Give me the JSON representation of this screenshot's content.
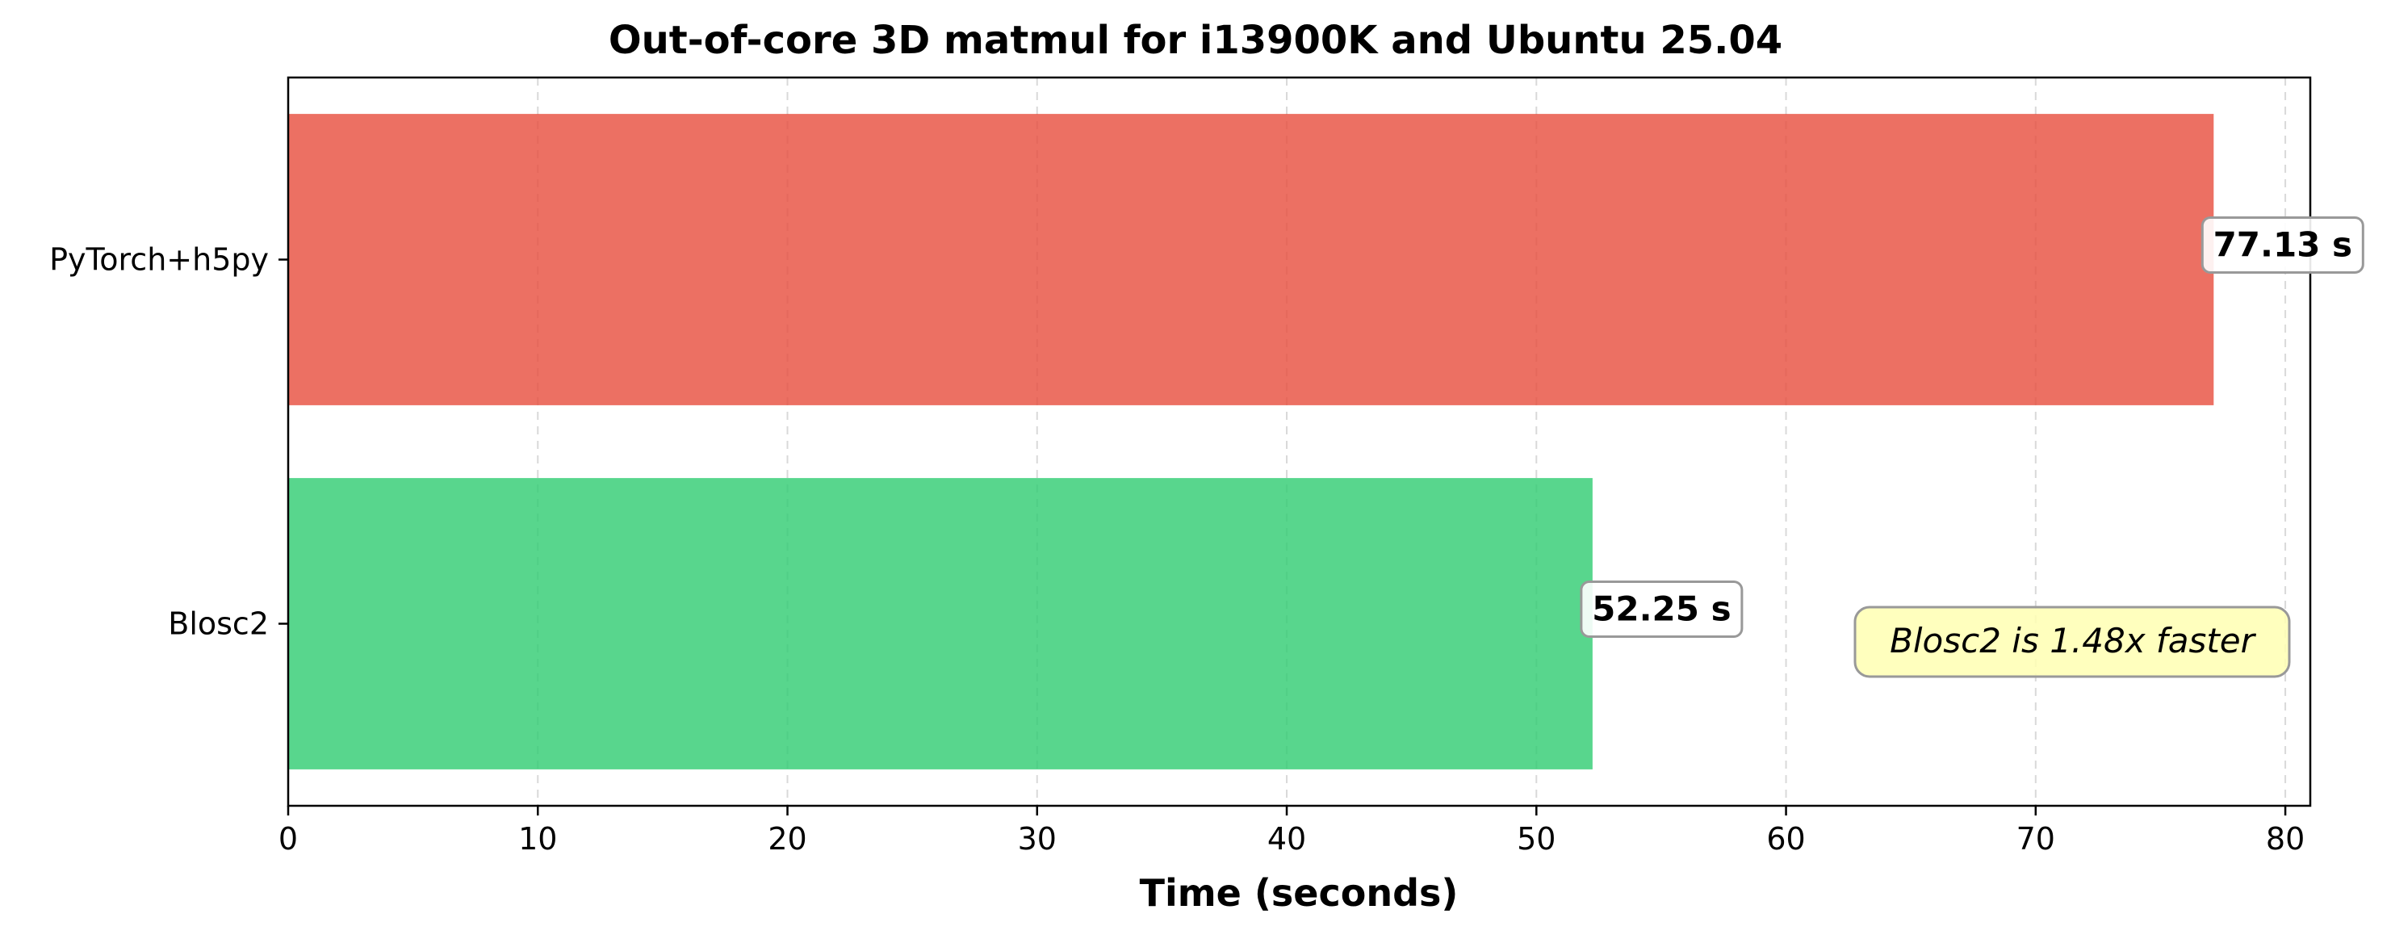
{
  "chart_data": {
    "type": "bar",
    "orientation": "horizontal",
    "title": "Out-of-core 3D matmul for i13900K and Ubuntu 25.04",
    "xlabel": "Time (seconds)",
    "ylabel": "",
    "xlim": [
      0,
      81
    ],
    "xticks": [
      0,
      10,
      20,
      30,
      40,
      50,
      60,
      70,
      80
    ],
    "grid": "x-dashed",
    "categories": [
      "PyTorch+h5py",
      "Blosc2"
    ],
    "values": [
      77.13,
      52.25
    ],
    "colors": [
      "#e74c3c",
      "#2ecc71"
    ],
    "data_labels": [
      "77.13 s",
      "52.25 s"
    ],
    "annotation": "Blosc2 is 1.48x faster",
    "annotation_position": "lower-right",
    "annotation_color": "#ffffb3"
  }
}
